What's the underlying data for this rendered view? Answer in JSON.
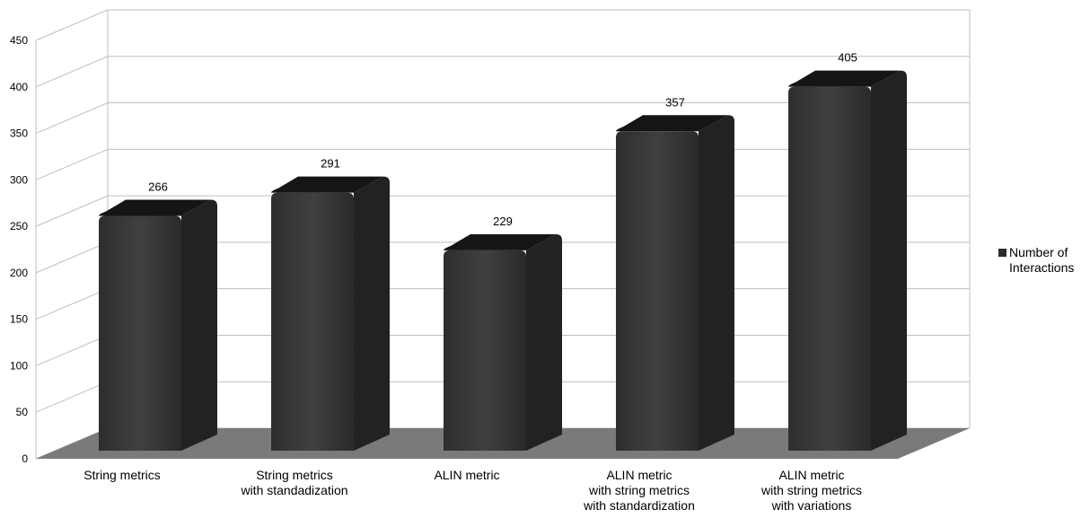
{
  "chart_data": {
    "type": "bar",
    "categories": [
      [
        "String metrics"
      ],
      [
        "String metrics",
        "with standadization"
      ],
      [
        "ALIN metric"
      ],
      [
        "ALIN metric",
        "with string metrics",
        "with standardization"
      ],
      [
        "ALIN metric",
        "with string metrics",
        "with variations"
      ]
    ],
    "series": [
      {
        "name": "Number of Interactions",
        "values": [
          266,
          291,
          229,
          357,
          405
        ]
      }
    ],
    "data_labels": [
      "266",
      "291",
      "229",
      "357",
      "405"
    ],
    "ylim": [
      0,
      450
    ],
    "yticks": [
      0,
      50,
      100,
      150,
      200,
      250,
      300,
      350,
      400,
      450
    ],
    "grid": true,
    "legend_position": "right",
    "three_d": true
  },
  "colors": {
    "bar_front": "#383838",
    "bar_side": "#222222",
    "bar_top": "#151515",
    "floor": "#7a7a7a",
    "grid": "#bfbfbf",
    "legend_swatch": "#2b2b2b"
  },
  "legend": {
    "label": "Number of Interactions"
  }
}
